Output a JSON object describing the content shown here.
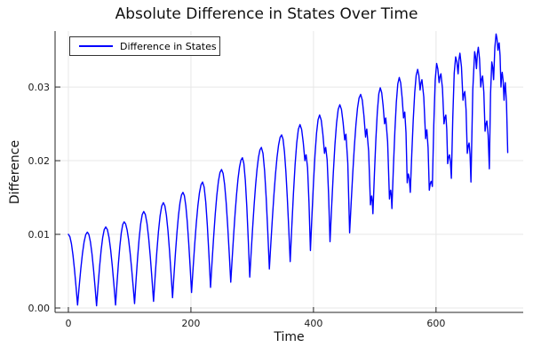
{
  "chart_data": {
    "type": "line",
    "title": "Absolute Difference in States Over Time",
    "xlabel": "Time",
    "ylabel": "Difference",
    "legend": {
      "position": "top-left",
      "entries": [
        {
          "label": "Difference in States",
          "color": "#0000ff"
        }
      ]
    },
    "xlim": [
      -21.7,
      742.3
    ],
    "ylim": [
      -0.0006,
      0.0376
    ],
    "grid": true,
    "framestyle": "axes-only-left-bottom",
    "xticks": {
      "values": [
        0,
        200,
        400,
        600
      ],
      "labels": [
        "0",
        "200",
        "400",
        "600"
      ]
    },
    "yticks": {
      "values": [
        0,
        0.01,
        0.02,
        0.03
      ],
      "labels": [
        "0.00",
        "0.01",
        "0.02",
        "0.03"
      ]
    },
    "colors": {
      "series": "#0000ff",
      "grid": "#e7e7e7",
      "axis": "#262626",
      "tick_text": "#1a1a1a",
      "background": "#ffffff"
    },
    "series": [
      {
        "name": "Difference in States",
        "color": "#0000ff",
        "interpolation": "abs-cosine-arches",
        "points": [
          [
            0,
            0.01
          ],
          [
            15,
            0.0004
          ],
          [
            31,
            0.0103
          ],
          [
            46,
            0.0003
          ],
          [
            61,
            0.011
          ],
          [
            77,
            0.0004
          ],
          [
            91,
            0.0117
          ],
          [
            108,
            0.0006
          ],
          [
            123,
            0.0131
          ],
          [
            139,
            0.0009
          ],
          [
            155,
            0.0143
          ],
          [
            170,
            0.0014
          ],
          [
            187,
            0.0157
          ],
          [
            201,
            0.0021
          ],
          [
            219,
            0.0171
          ],
          [
            232,
            0.0028
          ],
          [
            250,
            0.0188
          ],
          [
            265,
            0.0035
          ],
          [
            284,
            0.0204
          ],
          [
            296,
            0.0042
          ],
          [
            315,
            0.0218
          ],
          [
            328,
            0.0053
          ],
          [
            348,
            0.0235
          ],
          [
            362,
            0.0063
          ],
          [
            378,
            0.0249
          ],
          [
            386,
            0.02
          ],
          [
            388,
            0.0208
          ],
          [
            395,
            0.0078
          ],
          [
            410,
            0.0262
          ],
          [
            418,
            0.021
          ],
          [
            420,
            0.0218
          ],
          [
            427,
            0.009
          ],
          [
            443,
            0.0276
          ],
          [
            451,
            0.0228
          ],
          [
            453,
            0.0236
          ],
          [
            459,
            0.0102
          ],
          [
            477,
            0.029
          ],
          [
            485,
            0.0232
          ],
          [
            487,
            0.0243
          ],
          [
            493,
            0.014
          ],
          [
            495,
            0.0152
          ],
          [
            497,
            0.0128
          ],
          [
            509,
            0.0299
          ],
          [
            516,
            0.025
          ],
          [
            518,
            0.0258
          ],
          [
            524,
            0.0148
          ],
          [
            526,
            0.016
          ],
          [
            528,
            0.0135
          ],
          [
            540,
            0.0313
          ],
          [
            547,
            0.0258
          ],
          [
            549,
            0.0266
          ],
          [
            553,
            0.017
          ],
          [
            555,
            0.0182
          ],
          [
            558,
            0.0157
          ],
          [
            570,
            0.0324
          ],
          [
            574,
            0.0296
          ],
          [
            577,
            0.031
          ],
          [
            583,
            0.023
          ],
          [
            585,
            0.0242
          ],
          [
            589,
            0.016
          ],
          [
            592,
            0.0172
          ],
          [
            594,
            0.0165
          ],
          [
            601,
            0.0332
          ],
          [
            605,
            0.0306
          ],
          [
            608,
            0.0318
          ],
          [
            613,
            0.025
          ],
          [
            616,
            0.0262
          ],
          [
            619,
            0.0196
          ],
          [
            622,
            0.0208
          ],
          [
            625,
            0.0176
          ],
          [
            632,
            0.0341
          ],
          [
            636,
            0.0318
          ],
          [
            639,
            0.0346
          ],
          [
            644,
            0.0282
          ],
          [
            647,
            0.0294
          ],
          [
            651,
            0.021
          ],
          [
            654,
            0.0224
          ],
          [
            657,
            0.0171
          ],
          [
            663,
            0.0348
          ],
          [
            666,
            0.0325
          ],
          [
            669,
            0.0354
          ],
          [
            673,
            0.03
          ],
          [
            676,
            0.0315
          ],
          [
            680,
            0.024
          ],
          [
            683,
            0.0254
          ],
          [
            687,
            0.0189
          ],
          [
            691,
            0.0334
          ],
          [
            694,
            0.031
          ],
          [
            698,
            0.0372
          ],
          [
            701,
            0.035
          ],
          [
            703,
            0.036
          ],
          [
            706,
            0.03
          ],
          [
            708,
            0.032
          ],
          [
            711,
            0.0282
          ],
          [
            713,
            0.0306
          ],
          [
            717,
            0.0211
          ]
        ]
      }
    ]
  }
}
